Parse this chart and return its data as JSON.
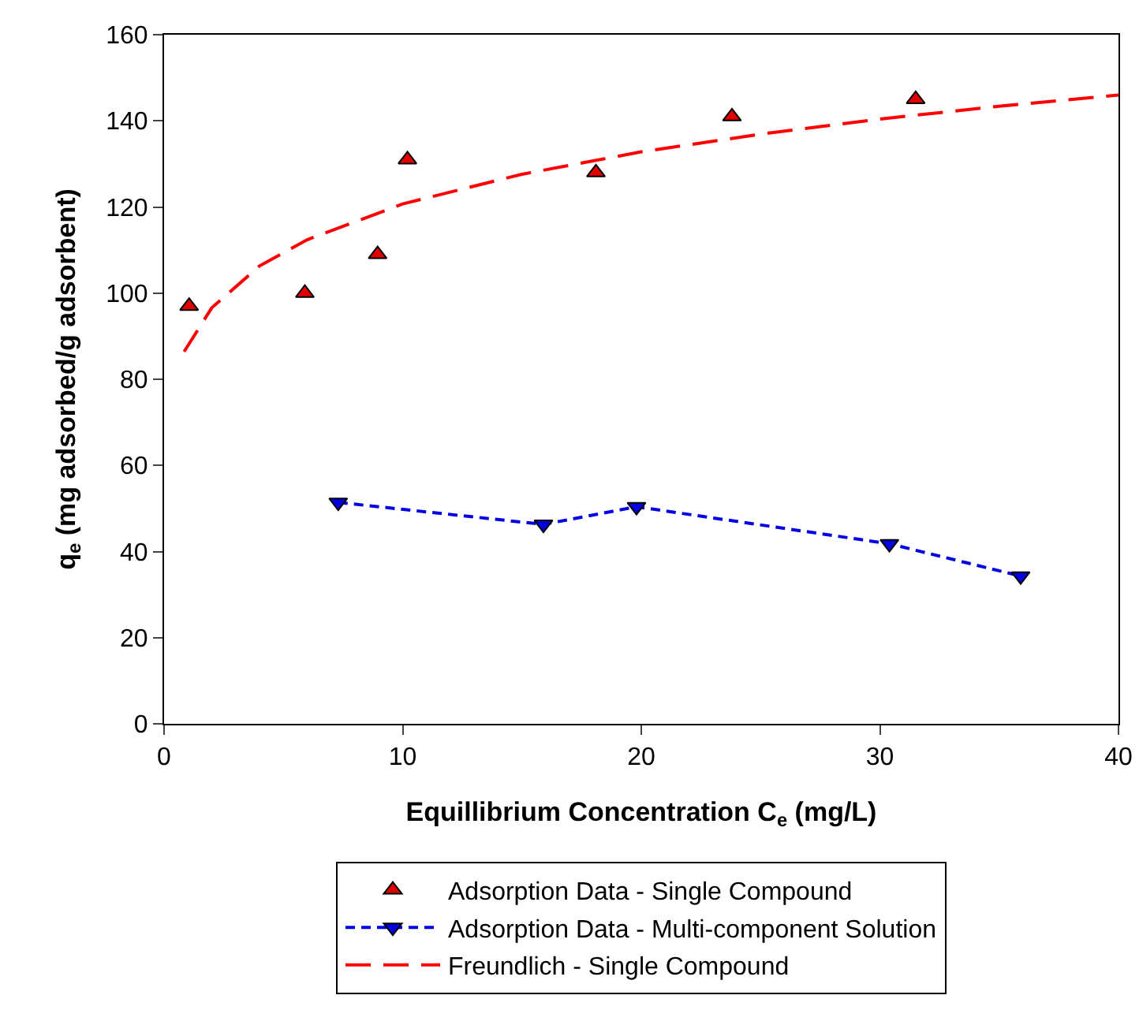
{
  "chart_data": {
    "type": "scatter",
    "xlabel": "Equillibrium Concentration C$_{e}$ (mg/L)",
    "ylabel": "q$_{e}$ (mg adsorbed/g adsorbent)",
    "xlim": [
      0,
      40
    ],
    "xticks": [
      0,
      10,
      20,
      30,
      40
    ],
    "ylim": [
      0,
      160
    ],
    "yticks": [
      0,
      20,
      40,
      60,
      80,
      100,
      120,
      140,
      160
    ],
    "grid": false,
    "legend": "bottom",
    "series": [
      {
        "name": "Adsorption Data - Single Compound",
        "type": "scatter",
        "marker": "triangle",
        "color": "#e00000",
        "x": [
          1.05,
          5.9,
          8.95,
          10.2,
          18.1,
          23.8,
          31.5
        ],
        "values": [
          97,
          100,
          109,
          131,
          128,
          141,
          145
        ]
      },
      {
        "name": "Adsorption Data - Multi-component Solution",
        "type": "line",
        "marker": "triangle-down",
        "line_style": "dashed",
        "color": "#0000e0",
        "x": [
          7.3,
          15.9,
          19.8,
          30.4,
          35.9
        ],
        "values": [
          51.4,
          46.3,
          50.4,
          41.8,
          34.3
        ]
      },
      {
        "name": "Freundlich - Single Compound",
        "type": "line",
        "marker": "none",
        "line_style": "dashed",
        "color": "#ff0000",
        "x": [
          0.84,
          2,
          4,
          6,
          10,
          15,
          20,
          25,
          30,
          35,
          40
        ],
        "values": [
          86.4,
          96.6,
          106.3,
          112.4,
          120.7,
          127.6,
          132.8,
          136.9,
          140.4,
          143.4,
          146
        ]
      }
    ]
  }
}
